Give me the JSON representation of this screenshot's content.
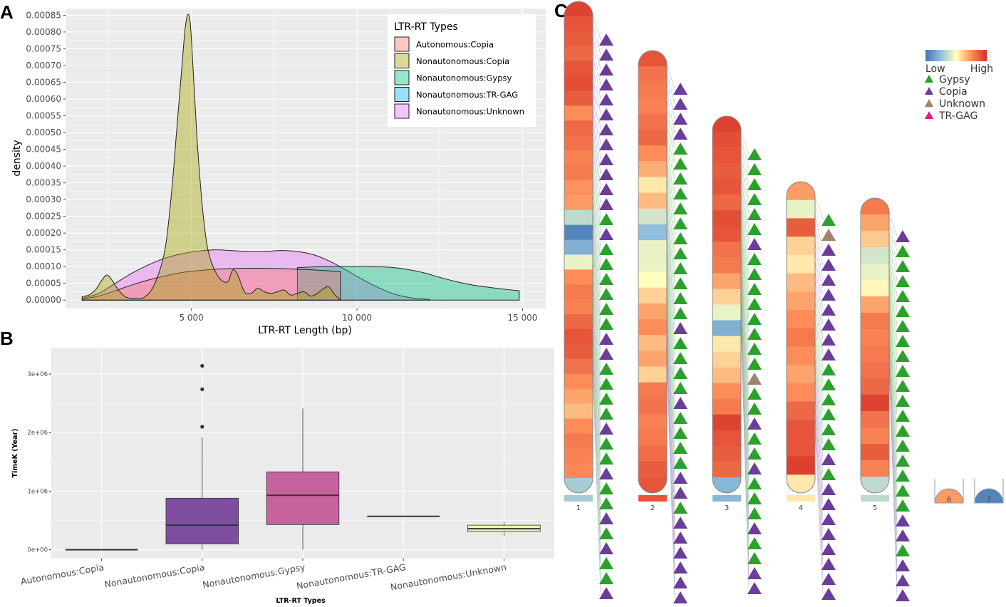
{
  "panels": {
    "a": "A",
    "b": "B",
    "c": "C"
  },
  "colors": {
    "autonomous_copia": "#F8766D",
    "nonautonomous_copia": "#A3A500",
    "nonautonomous_gypsy": "#00BF7D",
    "nonautonomous_trgag": "#00B0F6",
    "nonautonomous_unknown": "#E76BF3",
    "box_copia": "#7E4FA1",
    "box_gypsy": "#C8629E",
    "box_unknown": "#F4F3B0",
    "tri_gypsy": "#2CA02C",
    "tri_copia": "#6A3D9A",
    "tri_unknown": "#A0826D",
    "tri_trgag": "#F0127D"
  },
  "chart_data": [
    {
      "id": "density",
      "type": "area",
      "xlabel": "LTR-RT Length (bp)",
      "ylabel": "density",
      "xlim": [
        1200,
        15700
      ],
      "ylim": [
        -2.5e-05,
        0.00087
      ],
      "x_ticks": [
        5000,
        10000,
        15000
      ],
      "x_tick_labels": [
        "5 000",
        "10 000",
        "15 000"
      ],
      "y_ticks": [
        0,
        5e-05,
        0.0001,
        0.00015,
        0.0002,
        0.00025,
        0.0003,
        0.00035,
        0.0004,
        0.00045,
        0.0005,
        0.00055,
        0.0006,
        0.00065,
        0.0007,
        0.00075,
        0.0008,
        0.00085
      ],
      "y_tick_labels": [
        "0.00000",
        "0.00005",
        "0.00010",
        "0.00015",
        "0.00020",
        "0.00025",
        "0.00030",
        "0.00035",
        "0.00040",
        "0.00045",
        "0.00050",
        "0.00055",
        "0.00060",
        "0.00065",
        "0.00070",
        "0.00075",
        "0.00080",
        "0.00085"
      ],
      "legend_title": "LTR-RT Types",
      "legend_position": "top-right",
      "series": [
        {
          "name": "Autonomous:Copia",
          "color": "#F8766D",
          "x": [
            1700,
            2200,
            2700,
            3200,
            3700,
            4200,
            4700,
            5200,
            5700,
            6200,
            6700,
            7200,
            7700,
            8200,
            8700,
            9200,
            9500
          ],
          "y": [
            3e-06,
            1.2e-05,
            2.8e-05,
            4.5e-05,
            6e-05,
            7.2e-05,
            8.2e-05,
            8.8e-05,
            9.2e-05,
            9.4e-05,
            9.5e-05,
            9.5e-05,
            9.4e-05,
            9.2e-05,
            9e-05,
            8.7e-05,
            8.5e-05
          ]
        },
        {
          "name": "Nonautonomous:Copia",
          "color": "#A3A500",
          "x": [
            1700,
            1900,
            2100,
            2300,
            2450,
            2600,
            2800,
            3000,
            3300,
            3600,
            3900,
            4200,
            4400,
            4550,
            4700,
            4800,
            4880,
            4950,
            5000,
            5080,
            5200,
            5350,
            5500,
            5700,
            5900,
            6100,
            6250,
            6400,
            6600,
            6800,
            7000,
            7200,
            7400,
            7600,
            7800,
            8000,
            8200,
            8400,
            8600,
            8800,
            9000,
            9150,
            9300,
            9500
          ],
          "y": [
            1e-05,
            1.5e-05,
            3e-05,
            6e-05,
            7.5e-05,
            6e-05,
            3e-05,
            1e-05,
            5e-06,
            1e-05,
            5e-05,
            0.00015,
            0.00032,
            0.0005,
            0.00068,
            0.0008,
            0.00085,
            0.00084,
            0.00078,
            0.00064,
            0.00044,
            0.00026,
            0.00015,
            9e-05,
            6e-05,
            5.5e-05,
            9e-05,
            7.5e-05,
            2.5e-05,
            2e-05,
            3.5e-05,
            2.5e-05,
            2e-05,
            2.5e-05,
            3e-05,
            1.5e-05,
            2e-05,
            2.5e-05,
            1.2e-05,
            2e-05,
            3.5e-05,
            4e-05,
            2e-05,
            0.0
          ]
        },
        {
          "name": "Nonautonomous:Gypsy",
          "color": "#00BF7D",
          "x": [
            8200,
            9000,
            10000,
            10500,
            11000,
            11500,
            12000,
            12500,
            13000,
            13500,
            14000,
            14500,
            14900
          ],
          "y": [
            9.7e-05,
            0.0001,
            0.0001,
            0.0001,
            9.8e-05,
            9.2e-05,
            8.2e-05,
            6.8e-05,
            5.5e-05,
            4.5e-05,
            3.8e-05,
            3.2e-05,
            2.8e-05
          ]
        },
        {
          "name": "Nonautonomous:TR-GAG",
          "color": "#00B0F6",
          "x": [],
          "y": []
        },
        {
          "name": "Nonautonomous:Unknown",
          "color": "#E76BF3",
          "x": [
            1700,
            2200,
            2700,
            3200,
            3700,
            4200,
            4700,
            5200,
            5700,
            6200,
            6700,
            7200,
            7700,
            8200,
            8700,
            9200,
            9700,
            10200,
            10700,
            11200,
            11700,
            12200
          ],
          "y": [
            5e-06,
            2e-05,
            5e-05,
            8e-05,
            0.000105,
            0.000125,
            0.000138,
            0.000146,
            0.00015,
            0.000148,
            0.000145,
            0.000145,
            0.000148,
            0.000145,
            0.000135,
            0.000115,
            8.8e-05,
            6e-05,
            3.5e-05,
            1.6e-05,
            6e-06,
            2e-06
          ]
        }
      ]
    },
    {
      "id": "boxplot",
      "type": "boxplot",
      "xlabel": "LTR-RT Types",
      "ylabel": "TimeK (Year)",
      "ylim": [
        -150000,
        3450000
      ],
      "y_ticks": [
        0,
        1000000,
        2000000,
        3000000
      ],
      "y_tick_labels": [
        "0e+00",
        "1e+06",
        "2e+06",
        "3e+06"
      ],
      "categories": [
        "Autonomous:Copia",
        "Nonautonomous:Copia",
        "Nonautonomous:Gypsy",
        "Nonautonomous:TR-GAG",
        "Nonautonomous:Unknown"
      ],
      "boxes": [
        {
          "q1": 0,
          "median": 0,
          "q3": 0,
          "low": 0,
          "high": 0,
          "outliers": [],
          "fill": "none"
        },
        {
          "q1": 100000,
          "median": 420000,
          "q3": 880000,
          "low": 0,
          "high": 1920000,
          "outliers": [
            2100000,
            2740000,
            3140000
          ],
          "fill": "#7E4FA1"
        },
        {
          "q1": 430000,
          "median": 930000,
          "q3": 1330000,
          "low": 0,
          "high": 2410000,
          "outliers": [],
          "fill": "#C8629E"
        },
        {
          "q1": 570000,
          "median": 570000,
          "q3": 570000,
          "low": 570000,
          "high": 570000,
          "outliers": [],
          "fill": "none"
        },
        {
          "q1": 310000,
          "median": 360000,
          "q3": 420000,
          "low": 240000,
          "high": 480000,
          "outliers": [],
          "fill": "#F4F3B0"
        }
      ]
    },
    {
      "id": "chromosome-map",
      "type": "heatmap",
      "color_scale": {
        "low_label": "Low",
        "high_label": "High",
        "colors": [
          "#4575B4",
          "#FFFFBF",
          "#D73027"
        ]
      },
      "legend": [
        {
          "label": "Gypsy",
          "color": "#2CA02C"
        },
        {
          "label": "Copia",
          "color": "#6A3D9A"
        },
        {
          "label": "Unknown",
          "color": "#A0826D"
        },
        {
          "label": "TR-GAG",
          "color": "#F0127D"
        }
      ],
      "chromosomes": [
        {
          "label": "1",
          "length": 30,
          "heat": [
            0.95,
            0.9,
            0.88,
            0.85,
            0.9,
            0.92,
            0.88,
            0.75,
            0.85,
            0.82,
            0.78,
            0.8,
            0.74,
            0.72,
            0.35,
            0.05,
            0.2,
            0.45,
            0.75,
            0.8,
            0.78,
            0.85,
            0.9,
            0.88,
            0.82,
            0.75,
            0.7,
            0.65,
            0.75,
            0.8,
            0.78,
            0.76,
            0.3
          ],
          "te": "CCCCCCCCCCCCGCGGGGGGCCGGGGCGGCGGCGCGGCCRCCCCCCCCC"
        },
        {
          "label": "2",
          "length": 27,
          "heat": [
            0.9,
            0.82,
            0.8,
            0.78,
            0.82,
            0.85,
            0.75,
            0.68,
            0.55,
            0.65,
            0.4,
            0.25,
            0.45,
            0.45,
            0.5,
            0.6,
            0.7,
            0.75,
            0.65,
            0.7,
            0.6,
            0.8,
            0.82,
            0.78,
            0.8,
            0.84,
            0.88,
            0.9
          ],
          "te": "CCCCGGGGGGGGGGGGCGGGGCGGGGCCGCCCCCCCCCCCCCCCCCCC"
        },
        {
          "label": "3",
          "length": 23,
          "heat": [
            0.95,
            0.92,
            0.9,
            0.88,
            0.9,
            0.85,
            0.92,
            0.9,
            0.82,
            0.8,
            0.7,
            0.6,
            0.45,
            0.2,
            0.55,
            0.6,
            0.65,
            0.75,
            0.8,
            0.95,
            0.9,
            0.88,
            0.85,
            0.22
          ],
          "te": "GGGGGGCGGGGGGGGUGGCGGCGGGCGGCCCCCCGCCCCCCCCCCCCCCCCCC"
        },
        {
          "label": "4",
          "length": 19,
          "heat": [
            0.72,
            0.45,
            0.88,
            0.6,
            0.55,
            0.65,
            0.7,
            0.75,
            0.8,
            0.75,
            0.7,
            0.75,
            0.85,
            0.9,
            0.9,
            0.96,
            0.55
          ],
          "te": "GUCCCCCCCCGGGGGGCGCCCCCCCCCCCCC"
        },
        {
          "label": "5",
          "length": 18,
          "heat": [
            0.8,
            0.7,
            0.62,
            0.4,
            0.45,
            0.52,
            0.7,
            0.8,
            0.78,
            0.8,
            0.82,
            0.85,
            0.95,
            0.82,
            0.78,
            0.88,
            0.78,
            0.35
          ],
          "te": "CGGGGGGGGGGGGGGGGGGCCGCCCCCCCCCCCCCCGGCCCG"
        },
        {
          "label": "6",
          "length": 1,
          "heat": [
            0.72
          ],
          "te": ""
        },
        {
          "label": "7",
          "length": 1,
          "heat": [
            0.05
          ],
          "te": ""
        }
      ]
    }
  ]
}
